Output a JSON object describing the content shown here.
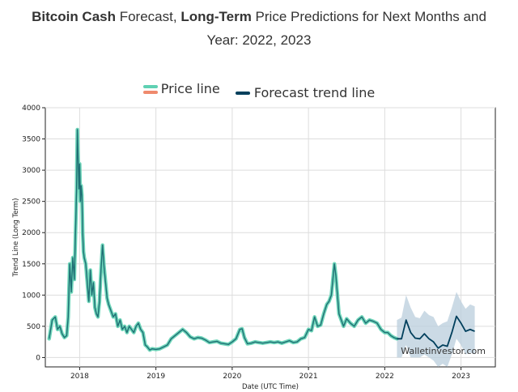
{
  "header": {
    "title_part1_bold": "Bitcoin Cash",
    "title_part2": " Forecast, ",
    "title_part3_bold": "Long-Term",
    "title_part4": " Price Predictions for Next Months and",
    "title_line2": "Year: 2022, 2023"
  },
  "legend": {
    "price_line_label": "Price line",
    "forecast_label": "Forecast trend line"
  },
  "watermark": "Walletinvestor.com",
  "colors": {
    "price_glow": "#5fd1b3",
    "price_core": "#1f6f74",
    "price_secondary": "#ef8a6d",
    "forecast_line": "#003f5c",
    "forecast_band": "#b9cddc",
    "grid": "#dddddd"
  },
  "chart_data": {
    "type": "line",
    "xlabel": "Date (UTC Time)",
    "ylabel": "Trend Line (Long Term)",
    "xlim": [
      2017.55,
      2023.45
    ],
    "ylim": [
      -150,
      4000
    ],
    "x_ticks": [
      2018,
      2019,
      2020,
      2021,
      2022,
      2023
    ],
    "x_tick_labels": [
      "2018",
      "2019",
      "2020",
      "2021",
      "2022",
      "2023"
    ],
    "y_ticks": [
      0,
      500,
      1000,
      1500,
      2000,
      2500,
      3000,
      3500,
      4000
    ],
    "grid": true,
    "legend_position": "top-center",
    "series": [
      {
        "name": "Price line",
        "x": [
          2017.6,
          2017.64,
          2017.68,
          2017.71,
          2017.74,
          2017.77,
          2017.8,
          2017.83,
          2017.85,
          2017.87,
          2017.89,
          2017.91,
          2017.93,
          2017.95,
          2017.96,
          2017.97,
          2017.98,
          2017.99,
          2018.0,
          2018.01,
          2018.02,
          2018.03,
          2018.04,
          2018.05,
          2018.06,
          2018.08,
          2018.1,
          2018.12,
          2018.14,
          2018.16,
          2018.18,
          2018.2,
          2018.22,
          2018.24,
          2018.26,
          2018.28,
          2018.3,
          2018.32,
          2018.34,
          2018.36,
          2018.38,
          2018.41,
          2018.44,
          2018.47,
          2018.5,
          2018.53,
          2018.56,
          2018.59,
          2018.62,
          2018.65,
          2018.68,
          2018.71,
          2018.74,
          2018.77,
          2018.8,
          2018.83,
          2018.86,
          2018.88,
          2018.9,
          2018.92,
          2018.95,
          2019.0,
          2019.05,
          2019.1,
          2019.15,
          2019.2,
          2019.25,
          2019.3,
          2019.35,
          2019.4,
          2019.45,
          2019.5,
          2019.55,
          2019.6,
          2019.65,
          2019.7,
          2019.75,
          2019.8,
          2019.85,
          2019.9,
          2019.95,
          2020.0,
          2020.05,
          2020.1,
          2020.13,
          2020.16,
          2020.2,
          2020.25,
          2020.3,
          2020.35,
          2020.4,
          2020.45,
          2020.5,
          2020.55,
          2020.6,
          2020.65,
          2020.7,
          2020.75,
          2020.8,
          2020.85,
          2020.9,
          2020.95,
          2021.0,
          2021.04,
          2021.08,
          2021.12,
          2021.16,
          2021.2,
          2021.24,
          2021.27,
          2021.3,
          2021.32,
          2021.34,
          2021.36,
          2021.38,
          2021.4,
          2021.43,
          2021.46,
          2021.5,
          2021.55,
          2021.6,
          2021.65,
          2021.7,
          2021.75,
          2021.8,
          2021.85,
          2021.9,
          2021.95,
          2022.0,
          2022.04,
          2022.08,
          2022.12,
          2022.16
        ],
        "y": [
          300,
          600,
          650,
          450,
          500,
          380,
          320,
          350,
          650,
          1500,
          1050,
          1600,
          1250,
          2200,
          2700,
          3650,
          3200,
          2700,
          3100,
          2500,
          2750,
          2600,
          2000,
          1700,
          1600,
          1500,
          1200,
          900,
          1400,
          1000,
          1200,
          800,
          700,
          650,
          900,
          1400,
          1800,
          1450,
          1200,
          950,
          850,
          750,
          650,
          700,
          500,
          600,
          450,
          500,
          400,
          500,
          450,
          400,
          500,
          550,
          450,
          400,
          200,
          180,
          150,
          120,
          140,
          130,
          140,
          170,
          200,
          300,
          350,
          400,
          450,
          400,
          330,
          300,
          320,
          310,
          280,
          240,
          250,
          260,
          230,
          220,
          210,
          250,
          300,
          450,
          460,
          320,
          220,
          230,
          250,
          240,
          230,
          240,
          250,
          240,
          250,
          230,
          250,
          270,
          240,
          250,
          300,
          320,
          450,
          430,
          650,
          500,
          520,
          700,
          850,
          900,
          1000,
          1250,
          1500,
          1300,
          1000,
          700,
          600,
          500,
          620,
          550,
          500,
          600,
          650,
          550,
          600,
          580,
          550,
          450,
          400,
          400,
          350,
          320,
          300
        ]
      },
      {
        "name": "Forecast trend line",
        "x": [
          2022.16,
          2022.22,
          2022.28,
          2022.34,
          2022.4,
          2022.46,
          2022.52,
          2022.58,
          2022.64,
          2022.7,
          2022.76,
          2022.82,
          2022.88,
          2022.94,
          2023.0,
          2023.06,
          2023.12,
          2023.18
        ],
        "y": [
          300,
          300,
          600,
          400,
          310,
          300,
          380,
          300,
          250,
          150,
          200,
          180,
          400,
          660,
          550,
          420,
          450,
          420
        ],
        "upper": [
          600,
          640,
          1000,
          800,
          650,
          630,
          750,
          680,
          650,
          500,
          550,
          580,
          800,
          1050,
          900,
          780,
          850,
          820
        ],
        "lower": [
          0,
          0,
          200,
          0,
          0,
          0,
          50,
          0,
          -50,
          -150,
          -100,
          -150,
          50,
          300,
          200,
          50,
          80,
          50
        ]
      }
    ]
  }
}
